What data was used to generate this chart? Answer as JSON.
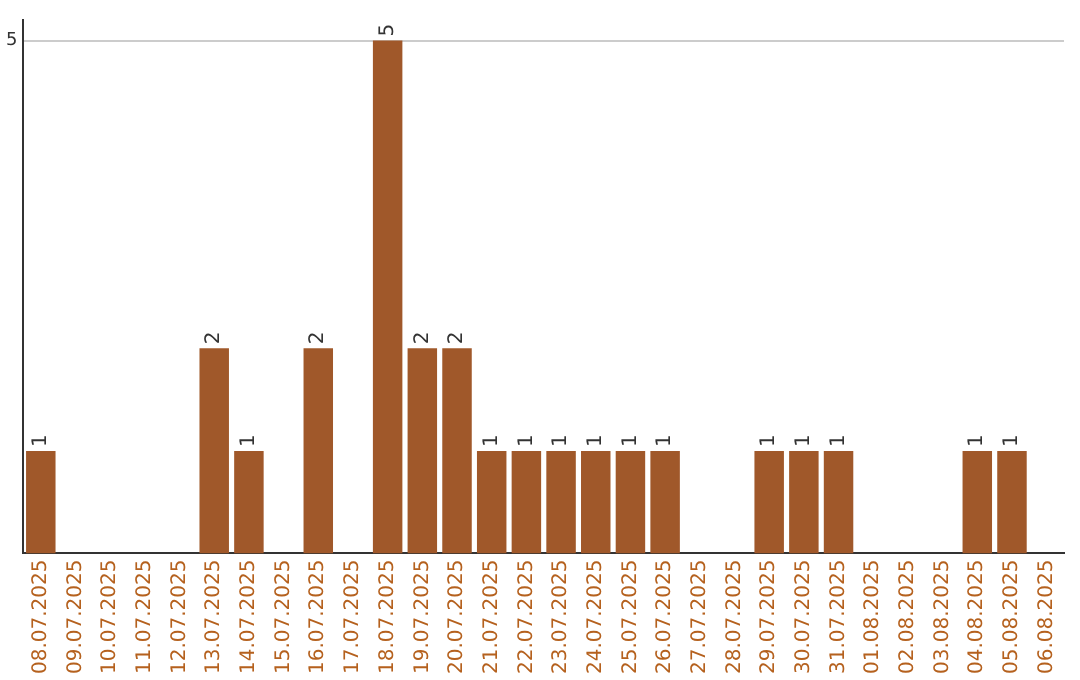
{
  "chart_data": {
    "type": "bar",
    "categories": [
      "08.07.2025",
      "09.07.2025",
      "10.07.2025",
      "11.07.2025",
      "12.07.2025",
      "13.07.2025",
      "14.07.2025",
      "15.07.2025",
      "16.07.2025",
      "17.07.2025",
      "18.07.2025",
      "19.07.2025",
      "20.07.2025",
      "21.07.2025",
      "22.07.2025",
      "23.07.2025",
      "24.07.2025",
      "25.07.2025",
      "26.07.2025",
      "27.07.2025",
      "28.07.2025",
      "29.07.2025",
      "30.07.2025",
      "31.07.2025",
      "01.08.2025",
      "02.08.2025",
      "03.08.2025",
      "04.08.2025",
      "05.08.2025",
      "06.08.2025"
    ],
    "values": [
      1,
      0,
      0,
      0,
      0,
      2,
      1,
      0,
      2,
      0,
      5,
      2,
      2,
      1,
      1,
      1,
      1,
      1,
      1,
      0,
      0,
      1,
      1,
      1,
      0,
      0,
      0,
      1,
      1,
      0
    ],
    "value_labels": [
      "1",
      null,
      null,
      null,
      null,
      "2",
      "1",
      null,
      "2",
      null,
      "5",
      "2",
      "2",
      "1",
      "1",
      "1",
      "1",
      "1",
      "1",
      null,
      null,
      "1",
      "1",
      "1",
      null,
      null,
      null,
      "1",
      "1",
      null
    ],
    "color": "#a0582a",
    "ylim": [
      0,
      5.2
    ],
    "yticks": [
      5
    ],
    "grid": "y",
    "legend": false
  }
}
